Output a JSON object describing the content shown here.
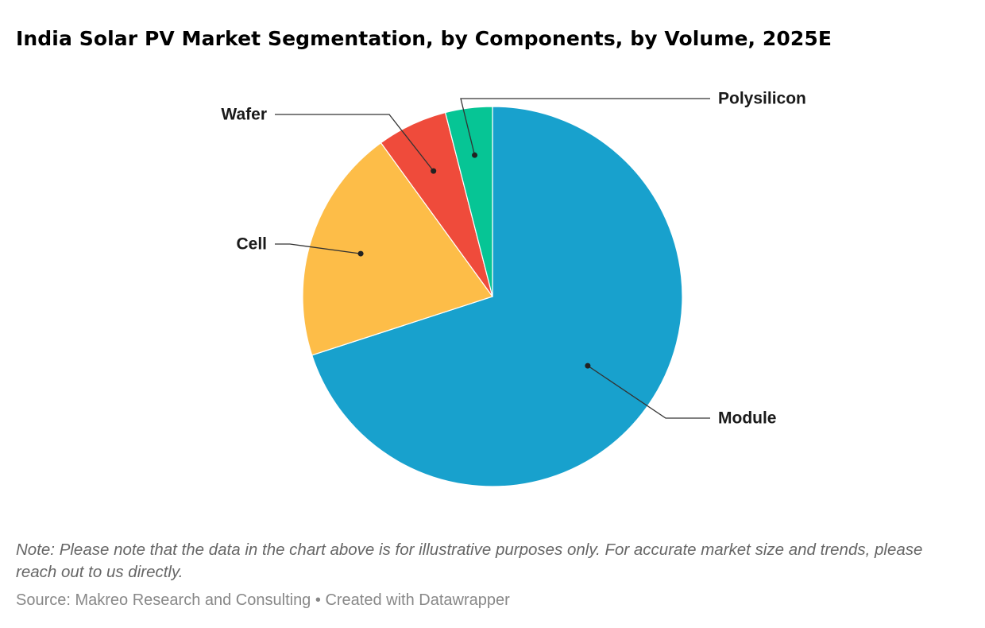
{
  "title": "India Solar PV Market Segmentation, by Components, by Volume, 2025E",
  "chart_data": {
    "type": "pie",
    "title": "India Solar PV Market Segmentation, by Components, by Volume, 2025E",
    "slices": [
      {
        "label": "Module",
        "value": 70,
        "color": "#18a1cd"
      },
      {
        "label": "Cell",
        "value": 20,
        "color": "#fdbd48"
      },
      {
        "label": "Wafer",
        "value": 6,
        "color": "#ef4b3b"
      },
      {
        "label": "Polysilicon",
        "value": 4,
        "color": "#06c595"
      }
    ]
  },
  "note": "Note: Please note that the data in the chart above is for illustrative purposes only. For accurate market size and trends, please reach out to us directly.",
  "source": {
    "text": "Source: Makreo Research and Consulting",
    "separator": "•",
    "credit": "Created with Datawrapper"
  }
}
